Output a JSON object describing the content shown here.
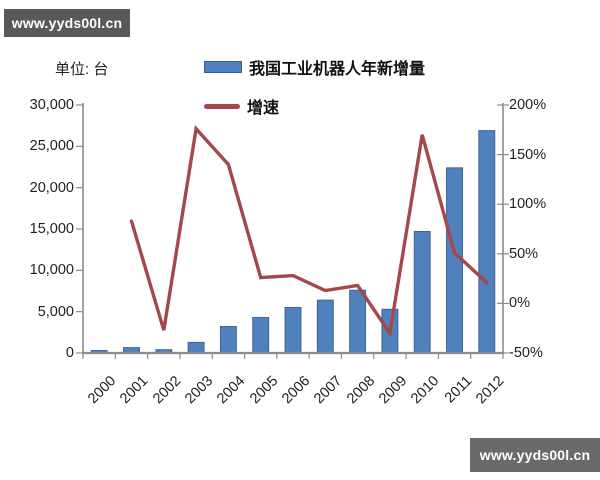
{
  "watermarks": {
    "top": "www.yyds00l.cn",
    "bottom": "www.yyds00l.cn"
  },
  "unit_label": "单位: 台",
  "legend": {
    "bars": "我国工业机器人年新增量",
    "line": "增速"
  },
  "colors": {
    "bar": "#4f81bd",
    "bar_border": "#36618e",
    "line": "#a4484c",
    "axis": "#8c8c8c",
    "text": "#1f1f1f",
    "watermark_top_bg": "#595959",
    "watermark_bottom_bg": "#6a6a6a"
  },
  "chart_data": {
    "type": "bar",
    "title": "",
    "categories": [
      "2000",
      "2001",
      "2002",
      "2003",
      "2004",
      "2005",
      "2006",
      "2007",
      "2008",
      "2009",
      "2010",
      "2011",
      "2012"
    ],
    "series": [
      {
        "name": "我国工业机器人年新增量",
        "type": "bar",
        "axis": "left",
        "values": [
          300,
          650,
          400,
          1300,
          3200,
          4300,
          5500,
          6400,
          7600,
          5300,
          14700,
          22400,
          26900
        ]
      },
      {
        "name": "增速",
        "type": "line",
        "axis": "right",
        "values": [
          null,
          83,
          -27,
          176,
          140,
          26,
          28,
          13,
          18,
          -30,
          170,
          51,
          21
        ]
      }
    ],
    "left_axis": {
      "min": 0,
      "max": 30000,
      "tick_step": 5000,
      "tick_labels": [
        "0",
        "5,000",
        "10,000",
        "15,000",
        "20,000",
        "25,000",
        "30,000"
      ]
    },
    "right_axis": {
      "min": -50,
      "max": 200,
      "tick_step": 50,
      "tick_labels": [
        "-50%",
        "0%",
        "50%",
        "100%",
        "150%",
        "200%"
      ]
    },
    "grid": false,
    "legend_position": "top"
  }
}
